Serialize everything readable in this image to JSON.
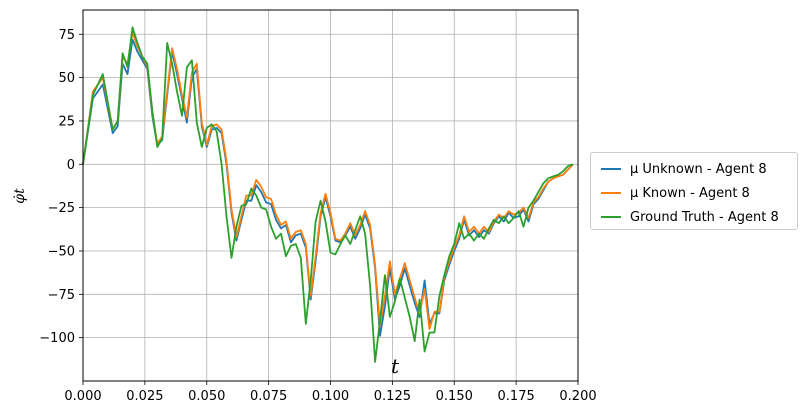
{
  "chart_data": {
    "type": "line",
    "xlabel": "t",
    "ylabel": "φ̇t",
    "xlim": [
      0.0,
      0.2
    ],
    "ylim": [
      -125,
      89
    ],
    "xticks": [
      0.0,
      0.025,
      0.05,
      0.075,
      0.1,
      0.125,
      0.15,
      0.175,
      0.2
    ],
    "xtick_labels": [
      "0.000",
      "0.025",
      "0.050",
      "0.075",
      "0.100",
      "0.125",
      "0.150",
      "0.175",
      "0.200"
    ],
    "yticks": [
      75,
      50,
      25,
      0,
      -25,
      -50,
      -75,
      -100
    ],
    "ytick_labels": [
      "75",
      "50",
      "25",
      "0",
      "−25",
      "−50",
      "−75",
      "−100"
    ],
    "grid": true,
    "legend_placement": "outside-right",
    "x": [
      0.0,
      0.004,
      0.008,
      0.012,
      0.014,
      0.016,
      0.018,
      0.02,
      0.022,
      0.024,
      0.026,
      0.028,
      0.03,
      0.032,
      0.034,
      0.036,
      0.038,
      0.04,
      0.042,
      0.044,
      0.046,
      0.048,
      0.05,
      0.052,
      0.054,
      0.056,
      0.058,
      0.06,
      0.062,
      0.064,
      0.066,
      0.068,
      0.07,
      0.072,
      0.074,
      0.076,
      0.078,
      0.08,
      0.082,
      0.084,
      0.086,
      0.088,
      0.09,
      0.092,
      0.094,
      0.096,
      0.098,
      0.1,
      0.102,
      0.104,
      0.106,
      0.108,
      0.11,
      0.112,
      0.114,
      0.116,
      0.118,
      0.12,
      0.122,
      0.124,
      0.126,
      0.128,
      0.13,
      0.132,
      0.134,
      0.136,
      0.138,
      0.14,
      0.142,
      0.144,
      0.146,
      0.148,
      0.15,
      0.152,
      0.154,
      0.156,
      0.158,
      0.16,
      0.162,
      0.164,
      0.166,
      0.168,
      0.17,
      0.172,
      0.174,
      0.176,
      0.178,
      0.18,
      0.182,
      0.184,
      0.186,
      0.188,
      0.19,
      0.192,
      0.194,
      0.196,
      0.198
    ],
    "series": [
      {
        "name": "μ Unknown - Agent 8",
        "color": "#1f77b4",
        "values": [
          0,
          38,
          46,
          18,
          22,
          58,
          52,
          72,
          65,
          60,
          55,
          28,
          11,
          14,
          40,
          65,
          52,
          38,
          24,
          50,
          55,
          22,
          10,
          20,
          21,
          18,
          0,
          -28,
          -44,
          -32,
          -21,
          -21,
          -12,
          -16,
          -22,
          -23,
          -32,
          -37,
          -35,
          -45,
          -41,
          -40,
          -48,
          -78,
          -56,
          -30,
          -19,
          -30,
          -44,
          -45,
          -41,
          -36,
          -43,
          -37,
          -29,
          -37,
          -60,
          -99,
          -82,
          -60,
          -78,
          -70,
          -60,
          -70,
          -80,
          -88,
          -67,
          -92,
          -86,
          -86,
          -67,
          -58,
          -50,
          -43,
          -32,
          -41,
          -38,
          -42,
          -38,
          -40,
          -34,
          -30,
          -33,
          -28,
          -31,
          -30,
          -26,
          -33,
          -23,
          -20,
          -15,
          -10,
          -8,
          -7,
          -6,
          -3,
          0
        ]
      },
      {
        "name": "μ Known - Agent 8",
        "color": "#ff7f0e",
        "values": [
          0,
          42,
          50,
          20,
          25,
          62,
          58,
          76,
          68,
          62,
          57,
          30,
          12,
          16,
          42,
          67,
          55,
          40,
          27,
          53,
          58,
          24,
          11,
          22,
          23,
          20,
          2,
          -26,
          -42,
          -30,
          -18,
          -18,
          -9,
          -13,
          -19,
          -20,
          -29,
          -35,
          -33,
          -43,
          -39,
          -38,
          -46,
          -76,
          -53,
          -28,
          -17,
          -28,
          -43,
          -44,
          -40,
          -34,
          -41,
          -35,
          -27,
          -35,
          -58,
          -93,
          -76,
          -56,
          -75,
          -66,
          -57,
          -67,
          -77,
          -86,
          -72,
          -95,
          -85,
          -85,
          -65,
          -56,
          -48,
          -41,
          -30,
          -39,
          -36,
          -40,
          -36,
          -39,
          -33,
          -29,
          -31,
          -27,
          -29,
          -28,
          -25,
          -31,
          -22,
          -19,
          -14,
          -10,
          -8,
          -7,
          -6,
          -3,
          0
        ]
      },
      {
        "name": "Ground Truth - Agent 8",
        "color": "#2ca02c",
        "values": [
          0,
          40,
          52,
          20,
          25,
          64,
          56,
          79,
          70,
          62,
          58,
          31,
          10,
          15,
          70,
          58,
          42,
          28,
          56,
          60,
          24,
          10,
          21,
          23,
          19,
          0,
          -30,
          -54,
          -36,
          -24,
          -23,
          -14,
          -18,
          -25,
          -26,
          -36,
          -43,
          -40,
          -53,
          -47,
          -46,
          -54,
          -92,
          -67,
          -33,
          -21,
          -33,
          -51,
          -52,
          -46,
          -41,
          -46,
          -38,
          -30,
          -40,
          -70,
          -114,
          -90,
          -64,
          -88,
          -79,
          -66,
          -77,
          -88,
          -102,
          -78,
          -108,
          -97,
          -97,
          -76,
          -64,
          -53,
          -46,
          -34,
          -43,
          -40,
          -44,
          -40,
          -43,
          -37,
          -32,
          -34,
          -30,
          -34,
          -31,
          -27,
          -36,
          -25,
          -21,
          -16,
          -11,
          -8,
          -7,
          -6,
          -4,
          -1,
          0
        ]
      }
    ]
  }
}
